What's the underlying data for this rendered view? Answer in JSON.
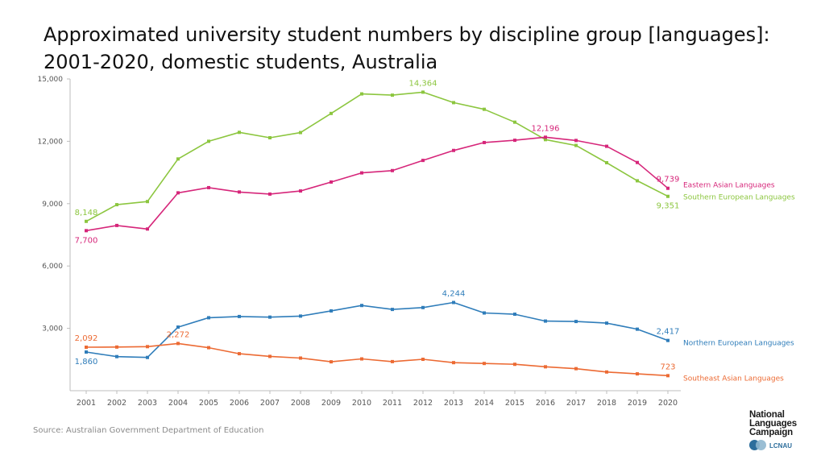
{
  "header": {
    "title_line1": "Approximated university student numbers by discipline group [languages]:",
    "title_line2": "2001-2020, domestic students, Australia"
  },
  "source": "Source: Australian Government Department of Education",
  "logo": {
    "line1": "National",
    "line2": "Languages",
    "line3": "Campaign",
    "badge": "LCNAU"
  },
  "colors": {
    "eastern_asian": "#d6267a",
    "southern_european": "#8cc63f",
    "northern_european": "#2f7dba",
    "southeast_asian": "#ec6a33",
    "axis": "#bdbdbd",
    "tick_text": "#555555"
  },
  "chart_data": {
    "type": "line",
    "x": [
      2001,
      2002,
      2003,
      2004,
      2005,
      2006,
      2007,
      2008,
      2009,
      2010,
      2011,
      2012,
      2013,
      2014,
      2015,
      2016,
      2017,
      2018,
      2019,
      2020
    ],
    "ylim": [
      0,
      15000
    ],
    "yticks": [
      {
        "value": 3000,
        "label": "3,000"
      },
      {
        "value": 6000,
        "label": "6,000"
      },
      {
        "value": 9000,
        "label": "9,000"
      },
      {
        "value": 12000,
        "label": "12,000"
      },
      {
        "value": 15000,
        "label": "15,000"
      }
    ],
    "grid": false,
    "legend": "inline labels at right end of lines",
    "series": [
      {
        "name": "Southern European Languages",
        "color": "#8cc63f",
        "values": [
          8148,
          8950,
          9100,
          11150,
          12000,
          12430,
          12170,
          12420,
          13340,
          14280,
          14220,
          14364,
          13860,
          13540,
          12920,
          12080,
          11800,
          10970,
          10100,
          9351
        ],
        "annotations": [
          {
            "index": 0,
            "label": "8,148",
            "pos": "above"
          },
          {
            "index": 11,
            "label": "14,364",
            "pos": "above"
          },
          {
            "index": 19,
            "label": "9,351",
            "pos": "below"
          }
        ]
      },
      {
        "name": "Eastern Asian Languages",
        "color": "#d6267a",
        "values": [
          7700,
          7950,
          7780,
          9520,
          9770,
          9560,
          9460,
          9610,
          10040,
          10480,
          10590,
          11080,
          11560,
          11940,
          12050,
          12196,
          12040,
          11760,
          10980,
          9739
        ],
        "annotations": [
          {
            "index": 0,
            "label": "7,700",
            "pos": "below"
          },
          {
            "index": 15,
            "label": "12,196",
            "pos": "above"
          },
          {
            "index": 19,
            "label": "9,739",
            "pos": "above"
          }
        ]
      },
      {
        "name": "Northern European Languages",
        "color": "#2f7dba",
        "values": [
          1860,
          1640,
          1600,
          3060,
          3510,
          3570,
          3540,
          3590,
          3840,
          4100,
          3910,
          4000,
          4244,
          3740,
          3680,
          3350,
          3330,
          3250,
          2960,
          2417
        ],
        "annotations": [
          {
            "index": 0,
            "label": "1,860",
            "pos": "below"
          },
          {
            "index": 12,
            "label": "4,244",
            "pos": "above"
          },
          {
            "index": 19,
            "label": "2,417",
            "pos": "above"
          }
        ]
      },
      {
        "name": "Southeast Asian Languages",
        "color": "#ec6a33",
        "values": [
          2092,
          2100,
          2120,
          2272,
          2070,
          1780,
          1650,
          1570,
          1390,
          1530,
          1400,
          1510,
          1350,
          1310,
          1270,
          1150,
          1060,
          900,
          810,
          723
        ],
        "annotations": [
          {
            "index": 0,
            "label": "2,092",
            "pos": "above"
          },
          {
            "index": 3,
            "label": "2,272",
            "pos": "above"
          },
          {
            "index": 19,
            "label": "723",
            "pos": "above"
          }
        ]
      }
    ]
  }
}
